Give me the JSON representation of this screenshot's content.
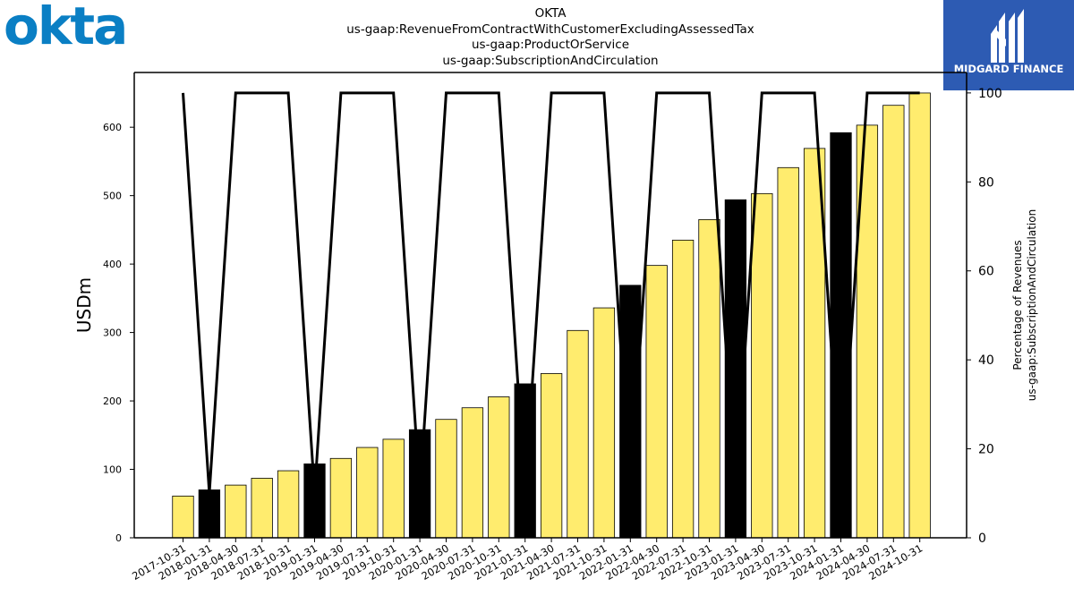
{
  "logos": {
    "left_text": "okta",
    "left_color": "#0a7fc4",
    "right_text": "MIDGARD FINANCE",
    "right_bg": "#2d5bb3"
  },
  "chart_data": {
    "type": "bar",
    "title_lines": [
      "OKTA",
      "us-gaap:RevenueFromContractWithCustomerExcludingAssessedTax",
      "us-gaap:ProductOrService",
      "us-gaap:SubscriptionAndCirculation"
    ],
    "ylabel": "USDm",
    "y2label_lines": [
      "Percentage of Revenues",
      "us-gaap:SubscriptionAndCirculation"
    ],
    "categories": [
      "2017-10-31",
      "2018-01-31",
      "2018-04-30",
      "2018-07-31",
      "2018-10-31",
      "2019-01-31",
      "2019-04-30",
      "2019-07-31",
      "2019-10-31",
      "2020-01-31",
      "2020-04-30",
      "2020-07-31",
      "2020-10-31",
      "2021-01-31",
      "2021-04-30",
      "2021-07-31",
      "2021-10-31",
      "2022-01-31",
      "2022-04-30",
      "2022-07-31",
      "2022-10-31",
      "2023-01-31",
      "2023-04-30",
      "2023-07-31",
      "2023-10-31",
      "2024-01-31",
      "2024-04-30",
      "2024-07-31",
      "2024-10-31"
    ],
    "values": [
      61,
      70,
      77,
      87,
      98,
      108,
      116,
      132,
      144,
      158,
      173,
      190,
      206,
      225,
      240,
      303,
      336,
      369,
      398,
      435,
      465,
      494,
      503,
      541,
      569,
      592,
      603,
      632,
      650
    ],
    "bar_colors": [
      "#ffec6e",
      "#000000",
      "#ffec6e",
      "#ffec6e",
      "#ffec6e",
      "#000000",
      "#ffec6e",
      "#ffec6e",
      "#ffec6e",
      "#000000",
      "#ffec6e",
      "#ffec6e",
      "#ffec6e",
      "#000000",
      "#ffec6e",
      "#ffec6e",
      "#ffec6e",
      "#000000",
      "#ffec6e",
      "#ffec6e",
      "#ffec6e",
      "#000000",
      "#ffec6e",
      "#ffec6e",
      "#ffec6e",
      "#000000",
      "#ffec6e",
      "#ffec6e",
      "#ffec6e"
    ],
    "percentage_line": [
      100,
      10,
      100,
      100,
      100,
      10,
      100,
      100,
      100,
      10,
      100,
      100,
      100,
      10,
      100,
      100,
      100,
      10,
      100,
      100,
      100,
      10,
      100,
      100,
      100,
      10,
      100,
      100,
      100
    ],
    "ylim": [
      0,
      680
    ],
    "y_ticks": [
      0,
      100,
      200,
      300,
      400,
      500,
      600
    ],
    "y2lim": [
      0,
      104.6
    ],
    "y2_ticks": [
      0,
      20,
      40,
      60,
      80,
      100
    ],
    "grid": false
  }
}
